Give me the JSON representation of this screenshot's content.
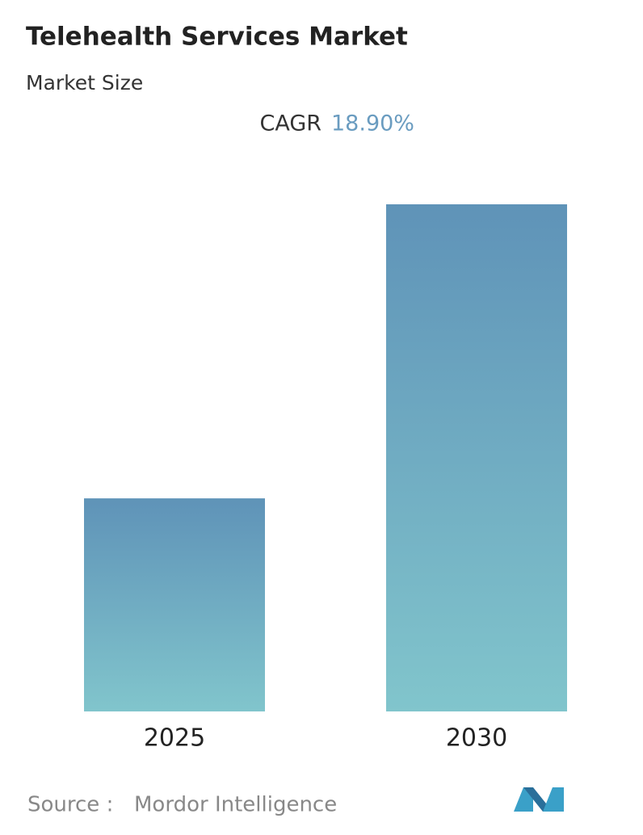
{
  "chart_data": {
    "type": "bar",
    "title": "Telehealth Services Market",
    "subtitle": "Market Size",
    "cagr": {
      "label": "CAGR",
      "value": "18.90%"
    },
    "categories": [
      "2025",
      "2030"
    ],
    "values": [
      1,
      2.38
    ],
    "color": {
      "top": "#5f93b8",
      "bottom": "#81c5cc"
    },
    "source": {
      "label": "Source :",
      "name": "Mordor Intelligence"
    }
  }
}
